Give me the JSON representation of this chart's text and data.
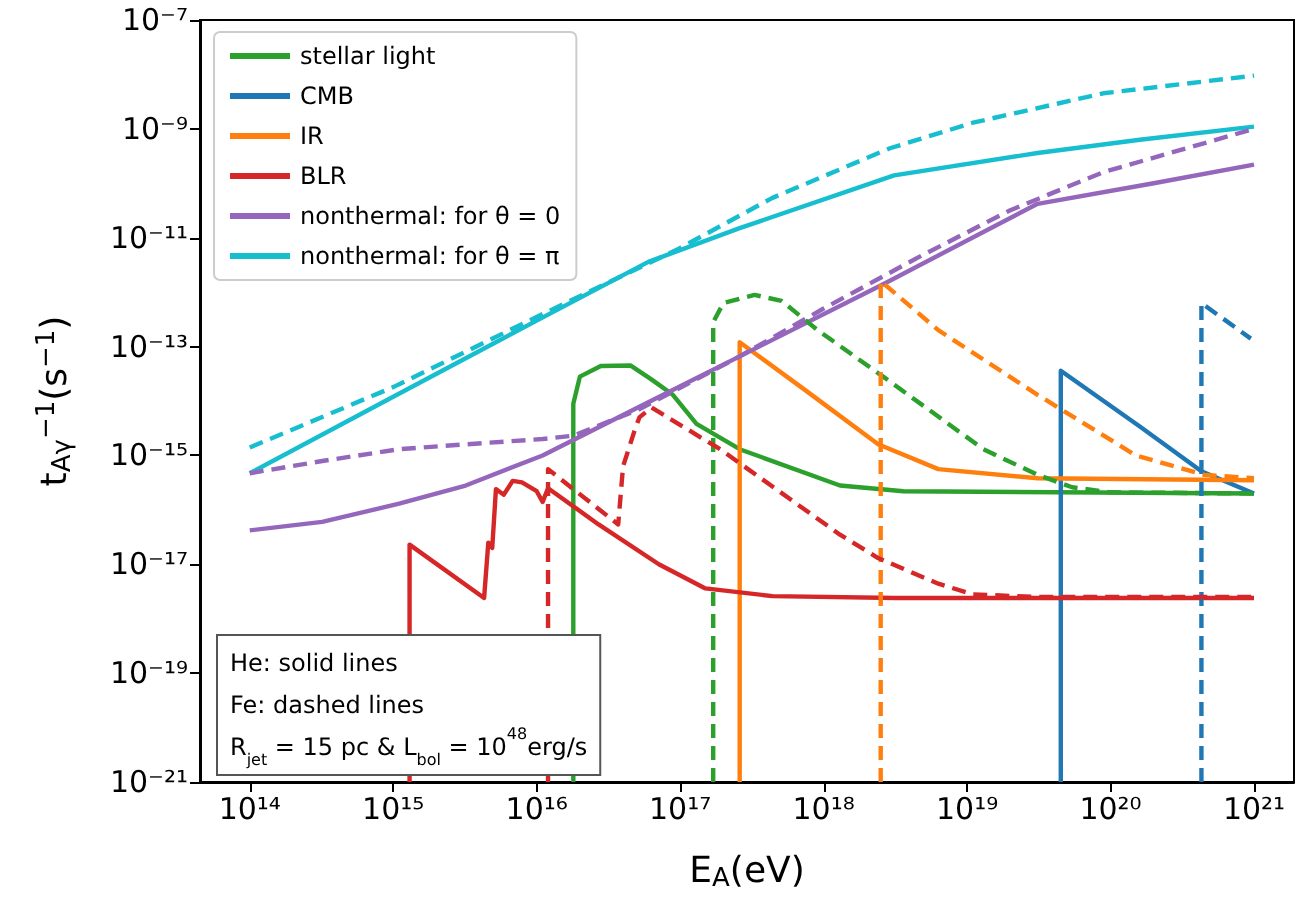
{
  "chart_data": {
    "type": "line",
    "log": "xy",
    "marker": "none",
    "legend": "top left",
    "xlabel": "E$_{A}$(eV)",
    "ylabel": "t$_{Aγ}$$^{−1}$(s$^{−1}$)",
    "annotations": [
      "He: solid lines",
      "Fe: dashed lines",
      "R$_{jet}$ = 15 pc & L$_{bol}$ = 10$^{48}$erg/s"
    ],
    "xlim": [
      45000000000000.0,
      1.9e+21
    ],
    "xticks": [
      {
        "value": 100000000000000.0,
        "label": "10¹⁴"
      },
      {
        "value": 1000000000000000.0,
        "label": "10¹⁵"
      },
      {
        "value": 1e+16,
        "label": "10¹⁶"
      },
      {
        "value": 1e+17,
        "label": "10¹⁷"
      },
      {
        "value": 1e+18,
        "label": "10¹⁸"
      },
      {
        "value": 1e+19,
        "label": "10¹⁹"
      },
      {
        "value": 1e+20,
        "label": "10²⁰"
      },
      {
        "value": 1e+21,
        "label": "10²¹"
      }
    ],
    "ylim": [
      1e-21,
      1e-07
    ],
    "yticks": [
      {
        "value": 1e-21,
        "label": "10⁻²¹"
      },
      {
        "value": 1e-19,
        "label": "10⁻¹⁹"
      },
      {
        "value": 1e-17,
        "label": "10⁻¹⁷"
      },
      {
        "value": 1e-15,
        "label": "10⁻¹⁵"
      },
      {
        "value": 1e-13,
        "label": "10⁻¹³"
      },
      {
        "value": 1e-11,
        "label": "10⁻¹¹"
      },
      {
        "value": 1e-09,
        "label": "10⁻⁹"
      },
      {
        "value": 1e-07,
        "label": "10⁻⁷"
      }
    ],
    "series": [
      {
        "name": "stellar light",
        "color": "#2ca02c",
        "line_style": "solid",
        "x": [
          1.8e+16,
          1.8e+16,
          2e+16,
          2.8e+16,
          4.5e+16,
          6.3e+16,
          8.9e+16,
          1.3e+17,
          2.6e+17,
          1.3e+18,
          3.6e+18,
          1e+21
        ],
        "values": [
          1e-21,
          8.9e-15,
          2.8e-14,
          4.4e-14,
          4.5e-14,
          2.5e-14,
          1.3e-14,
          3.8e-15,
          1.3e-15,
          2.8e-16,
          2.2e-16,
          2e-16
        ]
      },
      {
        "name": "CMB",
        "color": "#1f77b4",
        "line_style": "solid",
        "x": [
          4.5e+19,
          4.5e+19,
          1.6e+20,
          4.3e+20,
          1e+21
        ],
        "values": [
          1e-21,
          3.6e-14,
          3.4e-15,
          5.1e-16,
          2e-16
        ]
      },
      {
        "name": "IR",
        "color": "#ff7f0e",
        "line_style": "solid",
        "x": [
          2.6e+17,
          2.6e+17,
          7.4e+17,
          2.4e+18,
          6.3e+18,
          3.1e+19,
          1e+21
        ],
        "values": [
          1e-21,
          1.2e-13,
          1.6e-14,
          1.6e-15,
          5.6e-16,
          3.8e-16,
          3.5e-16
        ]
      },
      {
        "name": "BLR",
        "color": "#d62728",
        "line_style": "solid",
        "x": [
          1300000000000000.0,
          1300000000000000.0,
          4300000000000000.0,
          4600000000000000.0,
          4900000000000000.0,
          5200000000000000.0,
          5900000000000000.0,
          6800000000000000.0,
          7900000000000000.0,
          1e+16,
          1.1e+16,
          1.2e+16,
          2.7e+16,
          7.1e+16,
          1.5e+17,
          4.4e+17,
          3.2e+18,
          1e+21
        ],
        "values": [
          1e-21,
          2.3e-17,
          2.4e-18,
          2.5e-17,
          2e-17,
          2.4e-16,
          1.9e-16,
          3.4e-16,
          3.2e-16,
          2.2e-16,
          1.4e-16,
          2.5e-16,
          5.4e-17,
          1e-17,
          3.6e-18,
          2.6e-18,
          2.4e-18,
          2.4e-18
        ]
      },
      {
        "name": "nonthermal: for θ = 0",
        "color": "#9467bd",
        "line_style": "solid",
        "x": [
          100000000000000.0,
          320000000000000.0,
          1100000000000000.0,
          3200000000000000.0,
          1.1e+16,
          6e+16,
          2.6e+17,
          2.6e+18,
          3.1e+19,
          2e+20,
          1e+21
        ],
        "values": [
          4.2e-17,
          6e-17,
          1.3e-16,
          2.8e-16,
          1e-15,
          9.5e-15,
          6.6e-14,
          1.4e-12,
          4.2e-11,
          1e-10,
          2.2e-10
        ]
      },
      {
        "name": "nonthermal: for θ = π",
        "color": "#17becf",
        "line_style": "solid",
        "x": [
          100000000000000.0,
          1000000000000000.0,
          1e+16,
          6e+16,
          2.6e+17,
          3.1e+18,
          3.1e+19,
          1.6e+20,
          1e+21
        ],
        "values": [
          4.7e-16,
          1.2e-14,
          3e-13,
          3.6e-12,
          1.5e-11,
          1.4e-10,
          3.6e-10,
          6.3e-10,
          1.1e-09
        ]
      },
      {
        "color": "#2ca02c",
        "line_style": "dashed",
        "x": [
          1.7e+17,
          1.7e+17,
          2e+17,
          3.3e+17,
          5.1e+17,
          9.1e+17,
          2.6e+18,
          1.3e+19,
          3.1e+19,
          5.4e+19,
          1e+20,
          1e+21
        ],
        "values": [
          1e-21,
          2.8e-13,
          6.3e-13,
          8.9e-13,
          6.9e-13,
          2e-13,
          2.8e-14,
          1.3e-15,
          4.4e-16,
          2.6e-16,
          2.1e-16,
          2e-16
        ]
      },
      {
        "color": "#1f77b4",
        "line_style": "dashed",
        "x": [
          4.3e+20,
          4.3e+20,
          9.5e+20
        ],
        "values": [
          1e-21,
          6.3e-13,
          1.4e-13
        ]
      },
      {
        "color": "#ff7f0e",
        "line_style": "dashed",
        "x": [
          2.5e+18,
          2.5e+18,
          6.3e+18,
          3.1e+19,
          1.5e+20,
          4.5e+20,
          1e+21
        ],
        "values": [
          1e-21,
          1.6e-12,
          2e-13,
          1.3e-14,
          1e-15,
          4.4e-16,
          3.8e-16
        ]
      },
      {
        "color": "#d62728",
        "line_style": "dashed",
        "x": [
          1.2e+16,
          1.2e+16,
          3.7e+16,
          4e+16,
          4.8e+16,
          5.2e+16,
          6.3e+16,
          7.1e+16,
          1.9e+17,
          1.3e+18,
          2.4e+18,
          6.3e+18,
          1.1e+19,
          3.2e+19,
          1e+21
        ],
        "values": [
          1e-21,
          5.6e-16,
          5.4e-17,
          6.3e-16,
          2.8e-15,
          5e-15,
          7.6e-15,
          6.3e-15,
          1.3e-15,
          3.5e-17,
          1.3e-17,
          4.4e-18,
          2.8e-18,
          2.5e-18,
          2.5e-18
        ]
      },
      {
        "color": "#9467bd",
        "line_style": "dashed",
        "x": [
          100000000000000.0,
          320000000000000.0,
          1100000000000000.0,
          3200000000000000.0,
          1.1e+16,
          1.8e+16,
          5.1e+16,
          2.6e+17,
          1e+18,
          4.6e+18,
          2e+19,
          8.9e+19,
          1e+21
        ],
        "values": [
          4.7e-16,
          7.9e-16,
          1.3e-15,
          1.6e-15,
          2e-15,
          2.3e-15,
          6.9e-15,
          6.6e-14,
          5e-13,
          4.4e-12,
          3.2e-11,
          1.6e-10,
          1e-09
        ]
      },
      {
        "color": "#17becf",
        "line_style": "dashed",
        "x": [
          100000000000000.0,
          1000000000000000.0,
          1e+16,
          9.8e+16,
          4.4e+17,
          2.9e+18,
          1.1e+19,
          8.9e+19,
          1e+21
        ],
        "values": [
          1.4e-15,
          1.8e-14,
          3.5e-13,
          6.3e-12,
          5.4e-11,
          4.4e-10,
          1.3e-09,
          4.5e-09,
          9.5e-09
        ]
      }
    ]
  }
}
